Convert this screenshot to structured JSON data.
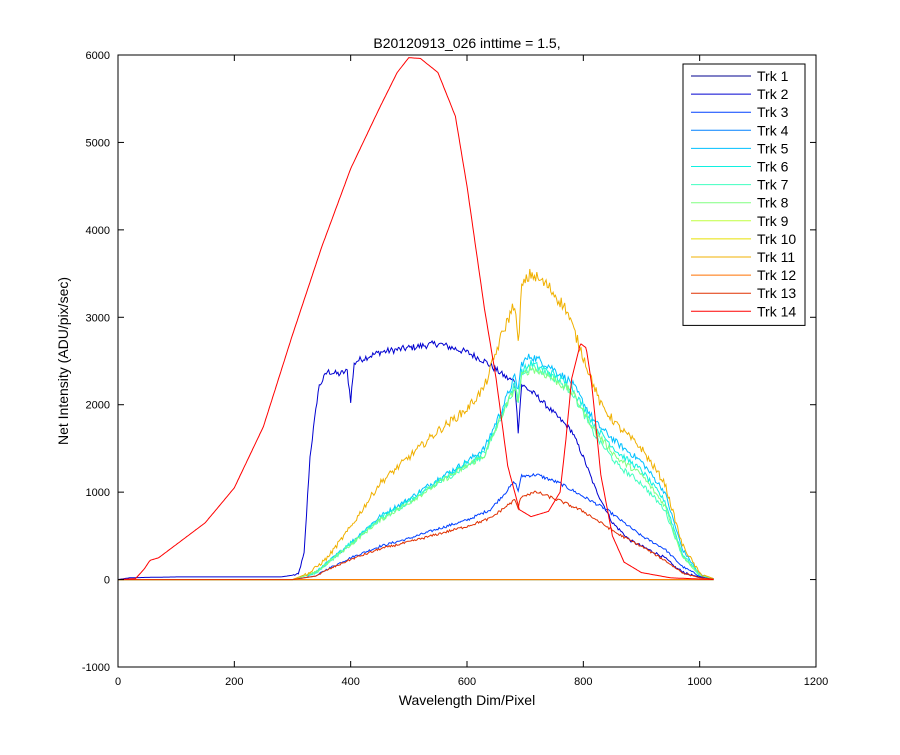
{
  "chart_data": {
    "type": "line",
    "title": "B20120913_026 inttime = 1.5,",
    "xlabel": "Wavelength Dim/Pixel",
    "ylabel": "Net Intensity (ADU/pix/sec)",
    "xlim": [
      0,
      1200
    ],
    "ylim": [
      -1000,
      6000
    ],
    "xticks": [
      0,
      200,
      400,
      600,
      800,
      1000,
      1200
    ],
    "yticks": [
      -1000,
      0,
      1000,
      2000,
      3000,
      4000,
      5000,
      6000
    ],
    "xtick_labels": [
      "0",
      "200",
      "400",
      "600",
      "800",
      "1000",
      "1200"
    ],
    "ytick_labels": [
      "-1000",
      "0",
      "1000",
      "2000",
      "3000",
      "4000",
      "5000",
      "6000"
    ],
    "grid": false,
    "legend_position": "top-right",
    "series": [
      {
        "name": "Trk 1",
        "color": "#00008f",
        "noise": 0,
        "points": [
          [
            0,
            0
          ],
          [
            1024,
            0
          ]
        ]
      },
      {
        "name": "Trk 2",
        "color": "#0000d0",
        "noise": 30,
        "points": [
          [
            0,
            0
          ],
          [
            20,
            20
          ],
          [
            50,
            25
          ],
          [
            100,
            30
          ],
          [
            200,
            30
          ],
          [
            280,
            30
          ],
          [
            310,
            60
          ],
          [
            320,
            300
          ],
          [
            330,
            1400
          ],
          [
            345,
            2200
          ],
          [
            360,
            2380
          ],
          [
            380,
            2350
          ],
          [
            400,
            2400
          ],
          [
            410,
            2500
          ],
          [
            450,
            2600
          ],
          [
            500,
            2650
          ],
          [
            550,
            2700
          ],
          [
            600,
            2600
          ],
          [
            630,
            2500
          ],
          [
            650,
            2400
          ],
          [
            670,
            2300
          ],
          [
            690,
            2250
          ],
          [
            700,
            2200
          ],
          [
            720,
            2100
          ],
          [
            750,
            1900
          ],
          [
            780,
            1700
          ],
          [
            800,
            1400
          ],
          [
            820,
            1050
          ],
          [
            850,
            650
          ],
          [
            880,
            450
          ],
          [
            910,
            350
          ],
          [
            940,
            250
          ],
          [
            960,
            130
          ],
          [
            980,
            60
          ],
          [
            1000,
            30
          ],
          [
            1024,
            10
          ]
        ],
        "dips": [
          [
            400,
            -350
          ],
          [
            688,
            -550
          ]
        ]
      },
      {
        "name": "Trk 3",
        "color": "#0040ff",
        "noise": 25,
        "points": [
          [
            0,
            0
          ],
          [
            300,
            0
          ],
          [
            340,
            40
          ],
          [
            360,
            120
          ],
          [
            400,
            250
          ],
          [
            450,
            380
          ],
          [
            500,
            470
          ],
          [
            550,
            580
          ],
          [
            600,
            680
          ],
          [
            640,
            800
          ],
          [
            660,
            950
          ],
          [
            690,
            1180
          ],
          [
            720,
            1200
          ],
          [
            760,
            1100
          ],
          [
            800,
            950
          ],
          [
            840,
            800
          ],
          [
            870,
            650
          ],
          [
            900,
            500
          ],
          [
            940,
            350
          ],
          [
            970,
            150
          ],
          [
            1000,
            40
          ],
          [
            1024,
            10
          ]
        ],
        "dips": [
          [
            688,
            -150
          ]
        ]
      },
      {
        "name": "Trk 4",
        "color": "#0080ff",
        "noise": 0,
        "points": [
          [
            0,
            0
          ],
          [
            1024,
            0
          ]
        ]
      },
      {
        "name": "Trk 5",
        "color": "#00c0ff",
        "noise": 40,
        "points": [
          [
            0,
            0
          ],
          [
            300,
            0
          ],
          [
            340,
            80
          ],
          [
            400,
            420
          ],
          [
            450,
            720
          ],
          [
            500,
            920
          ],
          [
            550,
            1150
          ],
          [
            600,
            1350
          ],
          [
            630,
            1500
          ],
          [
            660,
            1950
          ],
          [
            690,
            2450
          ],
          [
            710,
            2560
          ],
          [
            740,
            2450
          ],
          [
            780,
            2250
          ],
          [
            820,
            1800
          ],
          [
            860,
            1550
          ],
          [
            900,
            1350
          ],
          [
            940,
            1000
          ],
          [
            970,
            350
          ],
          [
            1000,
            60
          ],
          [
            1024,
            10
          ]
        ],
        "dips": [
          [
            688,
            -250
          ]
        ]
      },
      {
        "name": "Trk 6",
        "color": "#10f0e0",
        "noise": 40,
        "points": [
          [
            0,
            0
          ],
          [
            300,
            0
          ],
          [
            340,
            80
          ],
          [
            400,
            420
          ],
          [
            450,
            700
          ],
          [
            500,
            900
          ],
          [
            550,
            1120
          ],
          [
            600,
            1330
          ],
          [
            630,
            1450
          ],
          [
            660,
            1900
          ],
          [
            690,
            2350
          ],
          [
            710,
            2470
          ],
          [
            740,
            2380
          ],
          [
            780,
            2200
          ],
          [
            820,
            1750
          ],
          [
            860,
            1450
          ],
          [
            900,
            1250
          ],
          [
            940,
            900
          ],
          [
            970,
            300
          ],
          [
            1000,
            50
          ],
          [
            1024,
            10
          ]
        ],
        "dips": [
          [
            688,
            -250
          ]
        ]
      },
      {
        "name": "Trk 7",
        "color": "#40ffc0",
        "noise": 40,
        "points": [
          [
            0,
            0
          ],
          [
            300,
            0
          ],
          [
            340,
            80
          ],
          [
            400,
            400
          ],
          [
            450,
            680
          ],
          [
            500,
            880
          ],
          [
            550,
            1100
          ],
          [
            600,
            1300
          ],
          [
            630,
            1420
          ],
          [
            660,
            1880
          ],
          [
            690,
            2320
          ],
          [
            710,
            2440
          ],
          [
            740,
            2350
          ],
          [
            780,
            2150
          ],
          [
            820,
            1650
          ],
          [
            860,
            1300
          ],
          [
            900,
            1100
          ],
          [
            940,
            800
          ],
          [
            970,
            280
          ],
          [
            1000,
            50
          ],
          [
            1024,
            10
          ]
        ],
        "dips": [
          [
            688,
            -250
          ]
        ]
      },
      {
        "name": "Trk 8",
        "color": "#80ff80",
        "noise": 40,
        "points": [
          [
            0,
            0
          ],
          [
            300,
            0
          ],
          [
            340,
            80
          ],
          [
            400,
            400
          ],
          [
            450,
            680
          ],
          [
            500,
            880
          ],
          [
            550,
            1100
          ],
          [
            600,
            1300
          ],
          [
            630,
            1420
          ],
          [
            660,
            1880
          ],
          [
            690,
            2300
          ],
          [
            710,
            2420
          ],
          [
            740,
            2330
          ],
          [
            780,
            2150
          ],
          [
            820,
            1700
          ],
          [
            860,
            1380
          ],
          [
            900,
            1200
          ],
          [
            940,
            850
          ],
          [
            970,
            280
          ],
          [
            1000,
            50
          ],
          [
            1024,
            10
          ]
        ],
        "dips": [
          [
            688,
            -250
          ]
        ]
      },
      {
        "name": "Trk 9",
        "color": "#c0ff40",
        "noise": 0,
        "points": [
          [
            0,
            0
          ],
          [
            1024,
            0
          ]
        ]
      },
      {
        "name": "Trk 10",
        "color": "#e8e000",
        "noise": 0,
        "points": [
          [
            0,
            0
          ],
          [
            1024,
            0
          ]
        ]
      },
      {
        "name": "Trk 11",
        "color": "#f0b000",
        "noise": 50,
        "points": [
          [
            0,
            0
          ],
          [
            300,
            0
          ],
          [
            330,
            80
          ],
          [
            360,
            250
          ],
          [
            400,
            600
          ],
          [
            450,
            1100
          ],
          [
            500,
            1400
          ],
          [
            550,
            1700
          ],
          [
            600,
            1950
          ],
          [
            630,
            2200
          ],
          [
            660,
            2800
          ],
          [
            690,
            3300
          ],
          [
            710,
            3500
          ],
          [
            740,
            3350
          ],
          [
            770,
            3100
          ],
          [
            800,
            2550
          ],
          [
            830,
            2000
          ],
          [
            860,
            1750
          ],
          [
            900,
            1500
          ],
          [
            940,
            1100
          ],
          [
            970,
            400
          ],
          [
            1000,
            70
          ],
          [
            1024,
            10
          ]
        ],
        "dips": [
          [
            688,
            -600
          ]
        ]
      },
      {
        "name": "Trk 12",
        "color": "#ff7000",
        "noise": 0,
        "points": [
          [
            0,
            0
          ],
          [
            1024,
            0
          ]
        ]
      },
      {
        "name": "Trk 13",
        "color": "#e03000",
        "noise": 25,
        "points": [
          [
            0,
            0
          ],
          [
            300,
            0
          ],
          [
            340,
            40
          ],
          [
            360,
            110
          ],
          [
            400,
            230
          ],
          [
            450,
            350
          ],
          [
            500,
            430
          ],
          [
            550,
            520
          ],
          [
            600,
            610
          ],
          [
            640,
            700
          ],
          [
            660,
            800
          ],
          [
            690,
            950
          ],
          [
            720,
            1000
          ],
          [
            760,
            900
          ],
          [
            800,
            780
          ],
          [
            830,
            650
          ],
          [
            860,
            520
          ],
          [
            900,
            380
          ],
          [
            940,
            220
          ],
          [
            970,
            80
          ],
          [
            1000,
            20
          ],
          [
            1024,
            5
          ]
        ],
        "dips": [
          [
            688,
            -120
          ]
        ]
      },
      {
        "name": "Trk 14",
        "color": "#ff0000",
        "noise": 0,
        "points": [
          [
            0,
            0
          ],
          [
            30,
            10
          ],
          [
            45,
            120
          ],
          [
            55,
            220
          ],
          [
            70,
            250
          ],
          [
            100,
            400
          ],
          [
            150,
            650
          ],
          [
            200,
            1050
          ],
          [
            250,
            1750
          ],
          [
            300,
            2800
          ],
          [
            350,
            3800
          ],
          [
            400,
            4700
          ],
          [
            450,
            5400
          ],
          [
            480,
            5800
          ],
          [
            500,
            5970
          ],
          [
            520,
            5960
          ],
          [
            550,
            5800
          ],
          [
            580,
            5300
          ],
          [
            600,
            4500
          ],
          [
            630,
            3100
          ],
          [
            650,
            2300
          ],
          [
            670,
            1300
          ],
          [
            690,
            800
          ],
          [
            710,
            720
          ],
          [
            740,
            780
          ],
          [
            760,
            1000
          ],
          [
            770,
            1600
          ],
          [
            780,
            2300
          ],
          [
            795,
            2700
          ],
          [
            805,
            2650
          ],
          [
            815,
            2200
          ],
          [
            830,
            1200
          ],
          [
            850,
            500
          ],
          [
            870,
            200
          ],
          [
            900,
            80
          ],
          [
            950,
            20
          ],
          [
            1024,
            0
          ]
        ]
      }
    ]
  }
}
